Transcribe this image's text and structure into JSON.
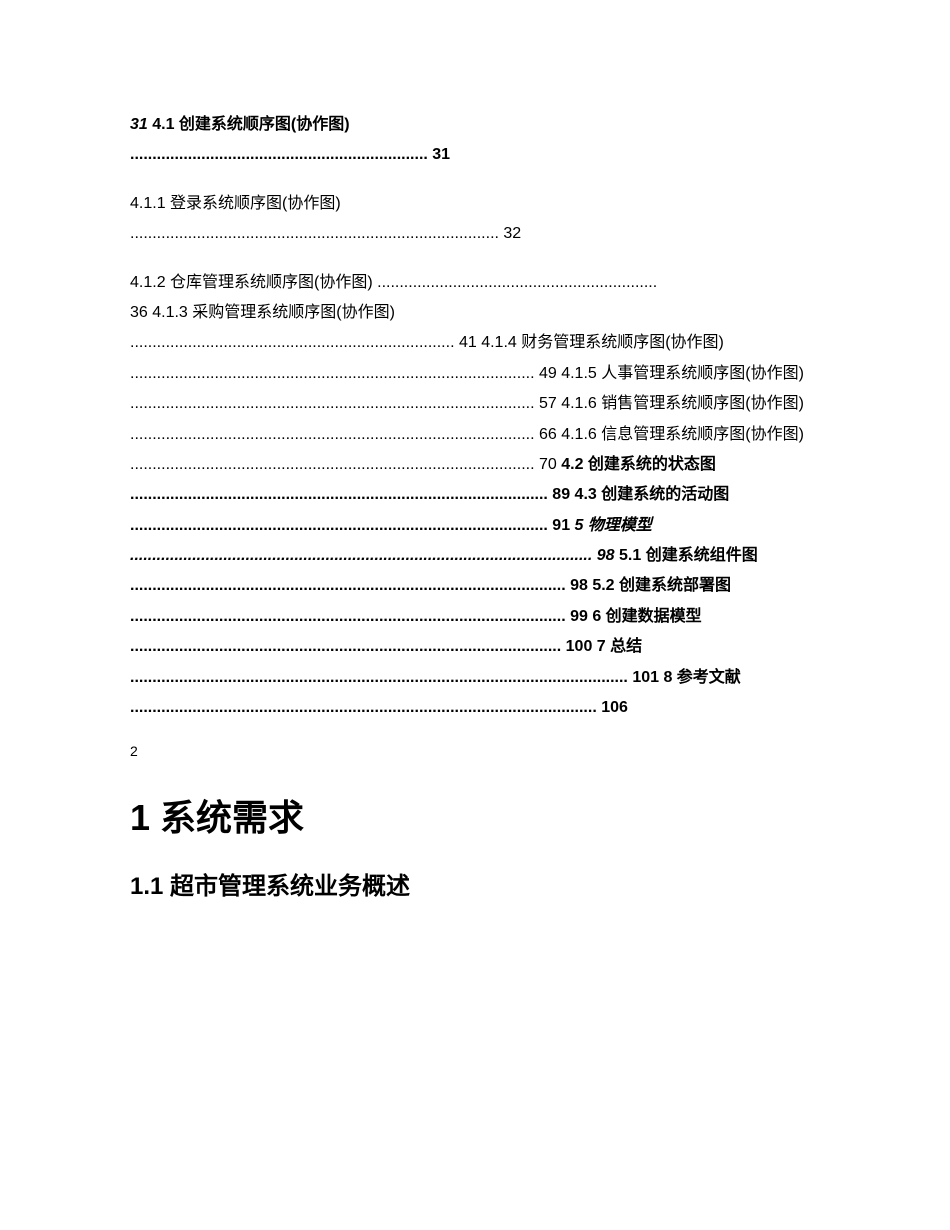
{
  "toc": {
    "line1": {
      "prefix": "31",
      "entry": " 4.1 创建系统顺序图(协作图)"
    },
    "dots1": " ................................................................... 31",
    "line2": "4.1.1 登录系统顺序图(协作图)",
    "dots2": " ................................................................................... 32",
    "line3": "4.1.2 仓库管理系统顺序图(协作图) ...............................................................",
    "line4": "36 4.1.3 采购管理系统顺序图(协作图)",
    "line5": " ......................................................................... 41 4.1.4 财务管理系统顺序图(协作图) ........................................................................................... 49 4.1.5 人事管理系统顺序图(协作图) ........................................................................................... 57 4.1.6 销售管理系统顺序图(协作图) ........................................................................................... 66 4.1.6 信息管理系统顺序图(协作图) ........................................................................................... 70 ",
    "bold_part1": "4.2 创建系统的状态图 .............................................................................................. 89 4.3 创建系统的活动图 .............................................................................................. 91 ",
    "italic_part": "5 物理模型 ........................................................................................................ 98",
    "bold_part2": " 5.1 创建系统组件图 .................................................................................................. 98 5.2 创建系统部署图 .................................................................................................. 99 6 创建数据模型 ................................................................................................. 100 7 总结 ................................................................................................................ 101 8 参考文献 ......................................................................................................... 106"
  },
  "pageNumber": "2",
  "heading1": "1 系统需求",
  "heading2": "1.1 超市管理系统业务概述"
}
